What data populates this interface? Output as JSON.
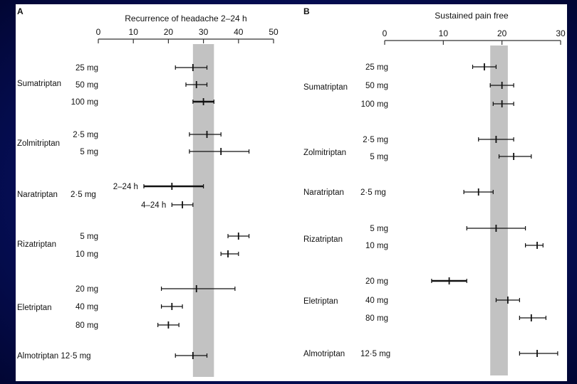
{
  "chart_data": [
    {
      "type": "forest",
      "panel_label": "A",
      "title": "Recurrence of headache 2–24 h",
      "xlabel": "Recurrence of headache 2–24 h",
      "xlim": [
        0,
        50
      ],
      "xticks": [
        0,
        10,
        20,
        30,
        40,
        50
      ],
      "reference_band": [
        27,
        33
      ],
      "groups": [
        {
          "drug": "Sumatriptan",
          "rows": [
            {
              "label": "25 mg",
              "est": 27,
              "lo": 22,
              "hi": 31,
              "weight": 1
            },
            {
              "label": "50 mg",
              "est": 28,
              "lo": 25,
              "hi": 31,
              "weight": 1
            },
            {
              "label": "100 mg",
              "est": 30,
              "lo": 27,
              "hi": 33,
              "weight": 2
            }
          ]
        },
        {
          "drug": "Zolmitriptan",
          "rows": [
            {
              "label": "2·5 mg",
              "est": 31,
              "lo": 26,
              "hi": 35,
              "weight": 1
            },
            {
              "label": "5 mg",
              "est": 35,
              "lo": 26,
              "hi": 43,
              "weight": 1
            }
          ]
        },
        {
          "drug": "Naratriptan",
          "drug_suffix": "2·5 mg",
          "rows": [
            {
              "label": "2–24 h",
              "est": 21,
              "lo": 13,
              "hi": 30,
              "weight": 2
            },
            {
              "label": "4–24 h",
              "est": 24,
              "lo": 21,
              "hi": 27,
              "weight": 1
            }
          ]
        },
        {
          "drug": "Rizatriptan",
          "rows": [
            {
              "label": "5 mg",
              "est": 40,
              "lo": 37,
              "hi": 43,
              "weight": 1
            },
            {
              "label": "10 mg",
              "est": 37,
              "lo": 35,
              "hi": 40,
              "weight": 1
            }
          ]
        },
        {
          "drug": "Eletriptan",
          "rows": [
            {
              "label": "20 mg",
              "est": 28,
              "lo": 18,
              "hi": 39,
              "weight": 1
            },
            {
              "label": "40 mg",
              "est": 21,
              "lo": 18,
              "hi": 24,
              "weight": 1
            },
            {
              "label": "80 mg",
              "est": 20,
              "lo": 17,
              "hi": 23,
              "weight": 1
            }
          ]
        },
        {
          "drug": "Almotriptan 12·5 mg",
          "rows": [
            {
              "label": "",
              "est": 27,
              "lo": 22,
              "hi": 31,
              "weight": 1
            }
          ]
        }
      ]
    },
    {
      "type": "forest",
      "panel_label": "B",
      "title": "Sustained pain free",
      "xlabel": "Sustained pain free",
      "xlim": [
        0,
        30
      ],
      "xticks": [
        0,
        10,
        20,
        30
      ],
      "reference_band": [
        18,
        21
      ],
      "groups": [
        {
          "drug": "Sumatriptan",
          "rows": [
            {
              "label": "25 mg",
              "est": 17,
              "lo": 15,
              "hi": 19,
              "weight": 1
            },
            {
              "label": "50 mg",
              "est": 20,
              "lo": 18,
              "hi": 22,
              "weight": 1
            },
            {
              "label": "100 mg",
              "est": 20,
              "lo": 18.5,
              "hi": 22,
              "weight": 1
            }
          ]
        },
        {
          "drug": "Zolmitriptan",
          "rows": [
            {
              "label": "2·5 mg",
              "est": 19,
              "lo": 16,
              "hi": 22,
              "weight": 1
            },
            {
              "label": "5 mg",
              "est": 22,
              "lo": 19.5,
              "hi": 25,
              "weight": 1
            }
          ]
        },
        {
          "drug": "Naratriptan",
          "drug_suffix": "2·5 mg",
          "rows": [
            {
              "label": "",
              "est": 16,
              "lo": 13.5,
              "hi": 18.5,
              "weight": 1
            }
          ]
        },
        {
          "drug": "Rizatriptan",
          "rows": [
            {
              "label": "5 mg",
              "est": 19,
              "lo": 14,
              "hi": 24,
              "weight": 1
            },
            {
              "label": "10 mg",
              "est": 26,
              "lo": 24,
              "hi": 27,
              "weight": 1
            }
          ]
        },
        {
          "drug": "Eletriptan",
          "rows": [
            {
              "label": "20 mg",
              "est": 11,
              "lo": 8,
              "hi": 14,
              "weight": 2
            },
            {
              "label": "40 mg",
              "est": 21,
              "lo": 19,
              "hi": 23,
              "weight": 1
            },
            {
              "label": "80 mg",
              "est": 25,
              "lo": 23,
              "hi": 27.5,
              "weight": 1
            }
          ]
        },
        {
          "drug": "Almotriptan",
          "drug_suffix": "12·5 mg",
          "rows": [
            {
              "label": "",
              "est": 26,
              "lo": 23,
              "hi": 29.5,
              "weight": 1
            }
          ]
        }
      ]
    }
  ]
}
